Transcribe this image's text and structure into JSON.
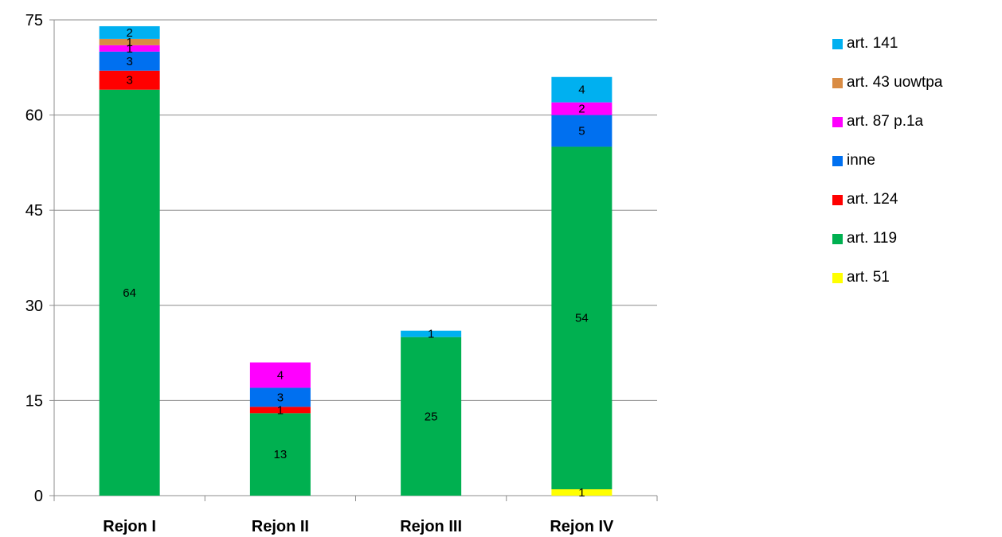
{
  "chart_data": {
    "type": "bar",
    "stacked": true,
    "categories": [
      "Rejon I",
      "Rejon II",
      "Rejon III",
      "Rejon IV"
    ],
    "ylim": [
      0,
      75
    ],
    "yticks": [
      "0",
      "15",
      "30",
      "45",
      "60",
      "75"
    ],
    "grid": true,
    "legend_position": "right",
    "series": [
      {
        "name": "art. 51",
        "color": "#ffff00",
        "values": [
          0,
          0,
          0,
          1
        ]
      },
      {
        "name": "art. 119",
        "color": "#00b050",
        "values": [
          64,
          13,
          25,
          54
        ]
      },
      {
        "name": "art. 124",
        "color": "#ff0000",
        "values": [
          3,
          1,
          0,
          0
        ]
      },
      {
        "name": "inne",
        "color": "#0070f0",
        "values": [
          3,
          3,
          0,
          5
        ]
      },
      {
        "name": "art. 87 p.1a",
        "color": "#ff00ff",
        "values": [
          1,
          4,
          0,
          2
        ]
      },
      {
        "name": "art. 43 uowtpa",
        "color": "#d98c44",
        "values": [
          1,
          0,
          0,
          0
        ]
      },
      {
        "name": "art. 141",
        "color": "#00b0f0",
        "values": [
          2,
          0,
          1,
          4
        ]
      }
    ],
    "legend_order": [
      "art. 141",
      "art. 43 uowtpa",
      "art. 87 p.1a",
      "inne",
      "art. 124",
      "art. 119",
      "art. 51"
    ]
  }
}
